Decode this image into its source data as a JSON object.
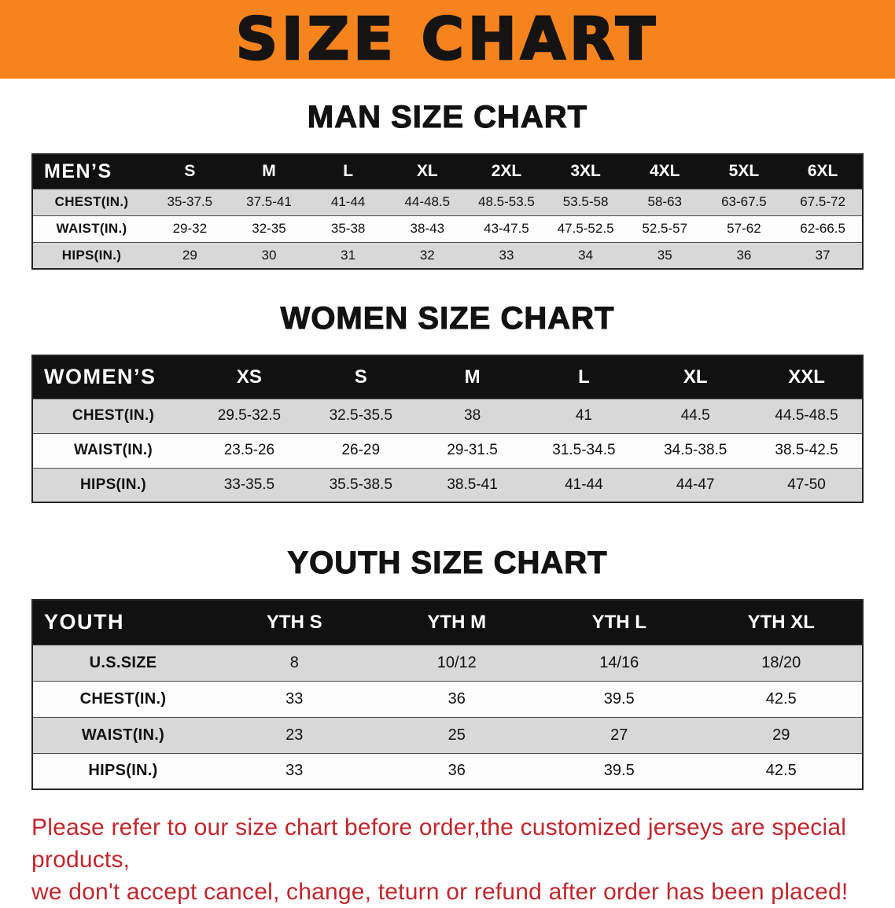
{
  "banner": {
    "title": "SIZE CHART"
  },
  "theme": {
    "banner_bg": "#f6831d",
    "banner_fg": "#161413",
    "header_bg": "#111111",
    "header_fg": "#ffffff",
    "stripe": "#d8d8d8",
    "row_white": "#fdfdfd",
    "footer_color": "#c1272d",
    "table_border": "#242424"
  },
  "sections": [
    {
      "id": "men",
      "title": "MAN SIZE CHART",
      "group_label": "MEN’S",
      "columns": [
        "S",
        "M",
        "L",
        "XL",
        "2XL",
        "3XL",
        "4XL",
        "5XL",
        "6XL"
      ],
      "rows": [
        {
          "label": "CHEST(IN.)",
          "values": [
            "35-37.5",
            "37.5-41",
            "41-44",
            "44-48.5",
            "48.5-53.5",
            "53.5-58",
            "58-63",
            "63-67.5",
            "67.5-72"
          ]
        },
        {
          "label": "WAIST(IN.)",
          "values": [
            "29-32",
            "32-35",
            "35-38",
            "38-43",
            "43-47.5",
            "47.5-52.5",
            "52.5-57",
            "57-62",
            "62-66.5"
          ]
        },
        {
          "label": "HIPS(IN.)",
          "values": [
            "29",
            "30",
            "31",
            "32",
            "33",
            "34",
            "35",
            "36",
            "37"
          ]
        }
      ]
    },
    {
      "id": "women",
      "title": "WOMEN SIZE CHART",
      "group_label": "WOMEN’S",
      "columns": [
        "XS",
        "S",
        "M",
        "L",
        "XL",
        "XXL"
      ],
      "rows": [
        {
          "label": "CHEST(IN.)",
          "values": [
            "29.5-32.5",
            "32.5-35.5",
            "38",
            "41",
            "44.5",
            "44.5-48.5"
          ]
        },
        {
          "label": "WAIST(IN.)",
          "values": [
            "23.5-26",
            "26-29",
            "29-31.5",
            "31.5-34.5",
            "34.5-38.5",
            "38.5-42.5"
          ]
        },
        {
          "label": "HIPS(IN.)",
          "values": [
            "33-35.5",
            "35.5-38.5",
            "38.5-41",
            "41-44",
            "44-47",
            "47-50"
          ]
        }
      ]
    },
    {
      "id": "youth",
      "title": "YOUTH SIZE CHART",
      "group_label": "YOUTH",
      "columns": [
        "YTH S",
        "YTH M",
        "YTH L",
        "YTH XL"
      ],
      "rows": [
        {
          "label": "U.S.SIZE",
          "values": [
            "8",
            "10/12",
            "14/16",
            "18/20"
          ]
        },
        {
          "label": "CHEST(IN.)",
          "values": [
            "33",
            "36",
            "39.5",
            "42.5"
          ]
        },
        {
          "label": "WAIST(IN.)",
          "values": [
            "23",
            "25",
            "27",
            "29"
          ]
        },
        {
          "label": "HIPS(IN.)",
          "values": [
            "33",
            "36",
            "39.5",
            "42.5"
          ]
        }
      ]
    }
  ],
  "footer": {
    "lines": [
      "Please refer to our size chart before order,the customized jerseys are special products,",
      "we don't accept cancel, change, teturn or refund after order has been placed!"
    ]
  }
}
